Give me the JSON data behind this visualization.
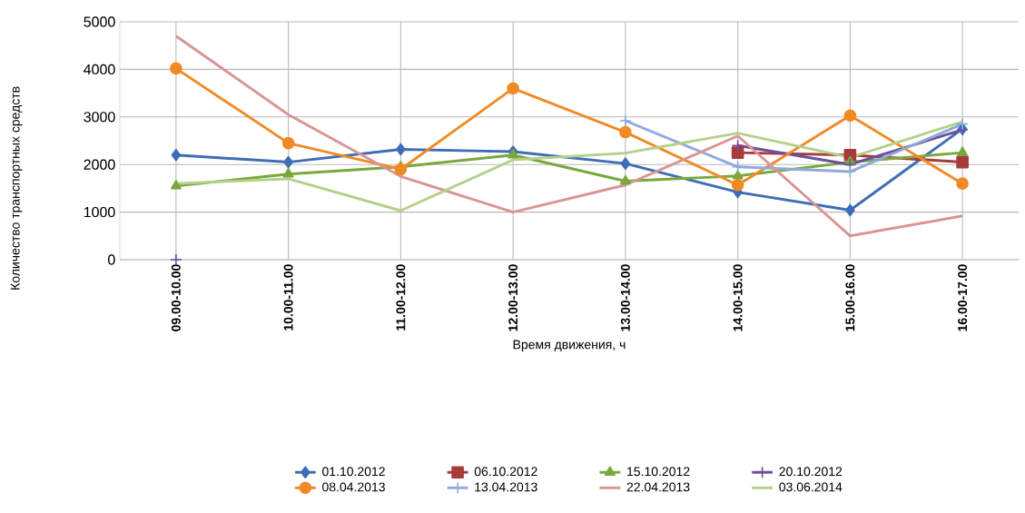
{
  "chart_data": {
    "type": "line",
    "xlabel": "Время движения, ч",
    "ylabel": "Количество транспортных средств",
    "categories": [
      "09.00-10.00",
      "10.00-11.00",
      "11.00-12.00",
      "12.00-13.00",
      "13.00-14.00",
      "14.00-15.00",
      "15.00-16.00",
      "16.00-17.00"
    ],
    "ylim": [
      0,
      5000
    ],
    "yticks": [
      0,
      1000,
      2000,
      3000,
      4000,
      5000
    ],
    "grid": true,
    "legend": "bottom",
    "series": [
      {
        "name": "01.10.2012",
        "color": "#3e6db5",
        "marker": "diamond",
        "values": [
          2200,
          2050,
          2320,
          2270,
          2020,
          1420,
          1040,
          2750
        ]
      },
      {
        "name": "06.10.2012",
        "color": "#a83a3a",
        "marker": "square",
        "values": [
          null,
          null,
          null,
          null,
          null,
          2250,
          2200,
          2050
        ]
      },
      {
        "name": "15.10.2012",
        "color": "#7aa83c",
        "marker": "triangle",
        "values": [
          1550,
          1800,
          1950,
          2200,
          1650,
          1760,
          2050,
          2250
        ]
      },
      {
        "name": "20.10.2012",
        "color": "#6b4f9a",
        "marker": "cross",
        "values": [
          0,
          null,
          null,
          null,
          null,
          2400,
          2000,
          2730
        ]
      },
      {
        "name": "08.04.2013",
        "color": "#f08a24",
        "marker": "circle",
        "values": [
          4020,
          2450,
          1900,
          3600,
          2680,
          1570,
          3030,
          1600
        ]
      },
      {
        "name": "13.04.2013",
        "color": "#8faadc",
        "marker": "cross",
        "values": [
          null,
          null,
          null,
          null,
          2920,
          1950,
          1850,
          2850
        ]
      },
      {
        "name": "22.04.2013",
        "color": "#d99594",
        "marker": "none",
        "values": [
          4700,
          3050,
          1750,
          1000,
          1570,
          2600,
          500,
          920
        ]
      },
      {
        "name": "03.06.2014",
        "color": "#b4d08a",
        "marker": "none",
        "values": [
          1600,
          1700,
          1030,
          2100,
          2240,
          2660,
          2150,
          2900
        ]
      }
    ]
  }
}
